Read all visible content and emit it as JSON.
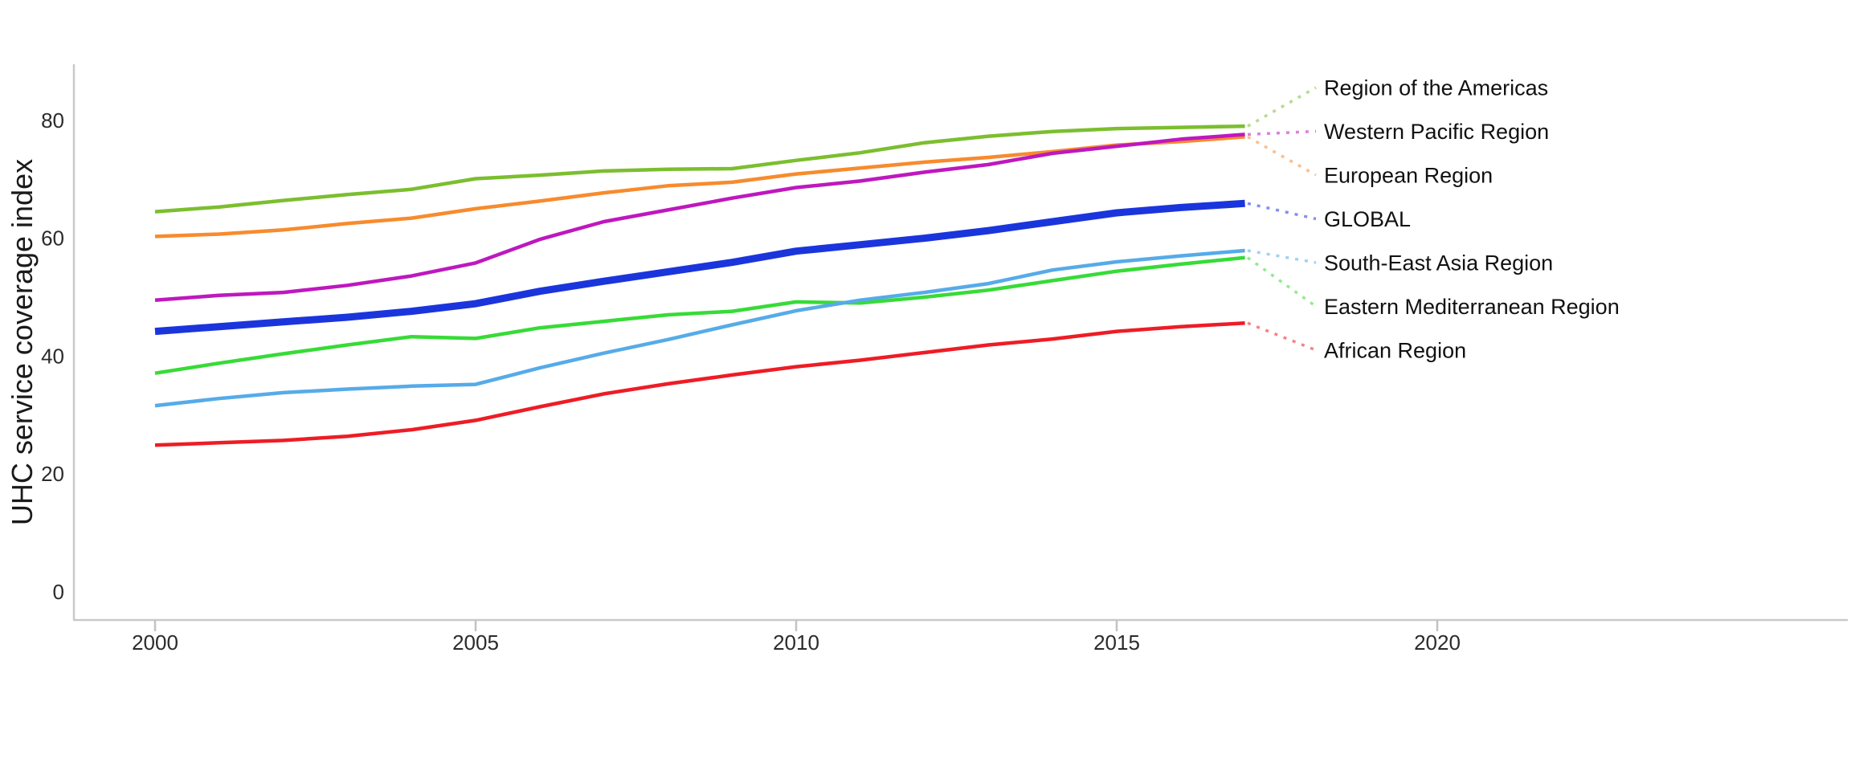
{
  "chart_data": {
    "type": "line",
    "title": "",
    "xlabel": "",
    "ylabel": "UHC service coverage index",
    "years": [
      2000,
      2001,
      2002,
      2003,
      2004,
      2005,
      2006,
      2007,
      2008,
      2009,
      2010,
      2011,
      2012,
      2013,
      2014,
      2015,
      2016,
      2017
    ],
    "x_ticks": [
      "2000",
      "2005",
      "2010",
      "2015",
      "2020"
    ],
    "x_tick_years": [
      2000,
      2005,
      2010,
      2015,
      2020
    ],
    "y_ticks": [
      "0",
      "20",
      "40",
      "60",
      "80"
    ],
    "y_tick_values": [
      0,
      20,
      40,
      60,
      80
    ],
    "xlim": [
      1998.7,
      2026.4
    ],
    "ylim": [
      -4.8,
      89.5
    ],
    "grid": false,
    "legend_position": "right-edge labels connected by dotted leader lines",
    "series": [
      {
        "name": "Region of the Americas",
        "color": "#7CBE2F",
        "line_width": 4.5,
        "values": [
          64.5,
          65.3,
          66.4,
          67.4,
          68.3,
          70.1,
          70.7,
          71.4,
          71.7,
          71.8,
          73.2,
          74.5,
          76.2,
          77.3,
          78.1,
          78.6,
          78.8,
          79.0
        ]
      },
      {
        "name": "Western Pacific Region",
        "color": "#BE18BE",
        "line_width": 4.5,
        "values": [
          49.5,
          50.3,
          50.8,
          52.0,
          53.6,
          55.8,
          59.8,
          62.8,
          64.8,
          66.8,
          68.6,
          69.7,
          71.2,
          72.5,
          74.4,
          75.6,
          76.8,
          77.6
        ]
      },
      {
        "name": "European Region",
        "color": "#F78B2D",
        "line_width": 4.5,
        "values": [
          60.3,
          60.7,
          61.4,
          62.5,
          63.4,
          65.0,
          66.3,
          67.7,
          68.9,
          69.5,
          70.9,
          71.9,
          72.9,
          73.7,
          74.7,
          75.8,
          76.4,
          77.2
        ]
      },
      {
        "name": "GLOBAL",
        "color": "#1B35DC",
        "line_width": 9,
        "values": [
          44.2,
          45.0,
          45.8,
          46.6,
          47.6,
          48.9,
          51.0,
          52.7,
          54.3,
          55.9,
          57.8,
          58.9,
          60.0,
          61.3,
          62.8,
          64.3,
          65.2,
          65.9
        ]
      },
      {
        "name": "South-East Asia Region",
        "color": "#56ABE8",
        "line_width": 4.5,
        "values": [
          31.6,
          32.8,
          33.8,
          34.4,
          34.9,
          35.2,
          38.0,
          40.5,
          42.8,
          45.3,
          47.7,
          49.5,
          50.8,
          52.3,
          54.6,
          56.0,
          57.0,
          57.9
        ]
      },
      {
        "name": "Eastern Mediterranean Region",
        "color": "#37DB37",
        "line_width": 4.5,
        "values": [
          37.1,
          38.8,
          40.4,
          41.9,
          43.3,
          43.0,
          44.8,
          45.9,
          47.0,
          47.6,
          49.2,
          49.0,
          50.0,
          51.2,
          52.8,
          54.4,
          55.6,
          56.7
        ]
      },
      {
        "name": "African Region",
        "color": "#EE1C25",
        "line_width": 4.5,
        "values": [
          24.9,
          25.3,
          25.7,
          26.4,
          27.5,
          29.1,
          31.4,
          33.6,
          35.3,
          36.8,
          38.2,
          39.3,
          40.6,
          41.9,
          42.9,
          44.2,
          45.0,
          45.6
        ]
      }
    ]
  }
}
